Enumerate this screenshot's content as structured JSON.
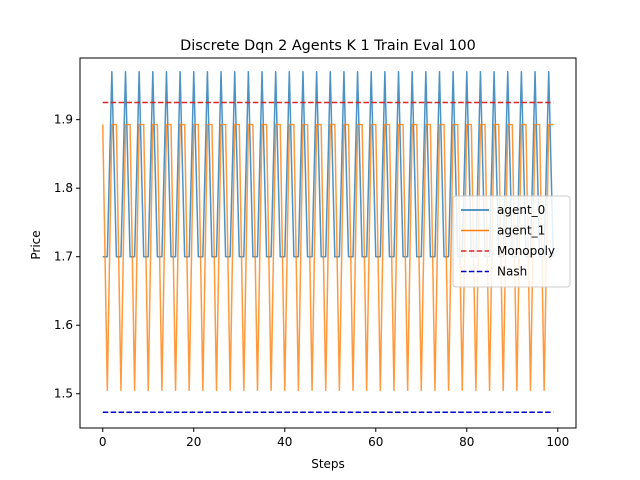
{
  "chart_data": {
    "type": "line",
    "title": "Discrete Dqn 2 Agents K 1 Train Eval 100",
    "xlabel": "Steps",
    "ylabel": "Price",
    "xlim": [
      -5,
      104
    ],
    "ylim": [
      1.45,
      1.99
    ],
    "xticks": [
      0,
      20,
      40,
      60,
      80,
      100
    ],
    "yticks": [
      1.5,
      1.6,
      1.7,
      1.8,
      1.9
    ],
    "xtick_labels": [
      "0",
      "20",
      "40",
      "60",
      "80",
      "100"
    ],
    "ytick_labels": [
      "1.5",
      "1.6",
      "1.7",
      "1.8",
      "1.9"
    ],
    "grid": false,
    "legend_position": "center-right",
    "series": [
      {
        "name": "agent_0",
        "color": "#1f77b4",
        "style": "solid",
        "pattern_note": "3-step cycle starting at step 0: values repeat [1.70, 1.70, 1.97]",
        "cycle": [
          1.7,
          1.7,
          1.97
        ],
        "x_start": 0,
        "x_end": 99
      },
      {
        "name": "agent_1",
        "color": "#ff7f0e",
        "style": "solid",
        "cycle": [
          1.893,
          1.505,
          1.893
        ],
        "x_start": 0,
        "x_end": 99
      },
      {
        "name": "Monopoly",
        "color": "#d62728",
        "style": "dashed",
        "x": [
          0,
          99
        ],
        "values": [
          1.925,
          1.925
        ]
      },
      {
        "name": "Nash",
        "color": "#0000cc",
        "style": "dashed",
        "x": [
          0,
          99
        ],
        "values": [
          1.473,
          1.473
        ]
      }
    ]
  }
}
